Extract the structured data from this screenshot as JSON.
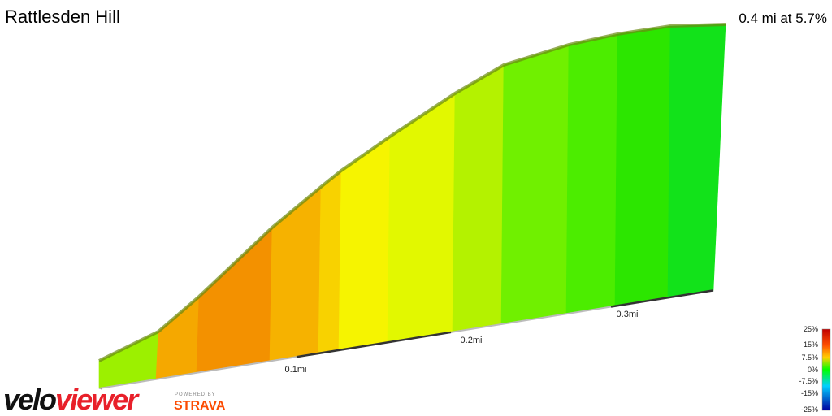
{
  "header": {
    "title": "Rattlesden Hill",
    "summary": "0.4 mi at 5.7%"
  },
  "distance_labels": [
    "0.1mi",
    "0.2mi",
    "0.3mi"
  ],
  "legend": {
    "ticks": [
      "25%",
      "15%",
      "7.5%",
      "0%",
      "-7.5%",
      "-15%",
      "-25%"
    ]
  },
  "logo": {
    "velo": "velo",
    "viewer": "viewer",
    "powered": "POWERED BY",
    "strava": "STRAVA"
  }
}
